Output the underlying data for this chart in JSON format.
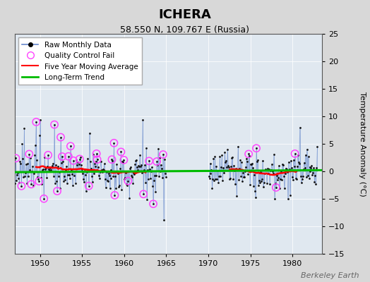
{
  "title": "ICHERA",
  "subtitle": "58.550 N, 109.767 E (Russia)",
  "ylabel": "Temperature Anomaly (°C)",
  "watermark": "Berkeley Earth",
  "xlim": [
    1947.0,
    1983.5
  ],
  "ylim": [
    -15,
    25
  ],
  "yticks": [
    -15,
    -10,
    -5,
    0,
    5,
    10,
    15,
    20,
    25
  ],
  "xticks": [
    1950,
    1955,
    1960,
    1965,
    1970,
    1975,
    1980
  ],
  "bg_color": "#d8d8d8",
  "plot_bg_color": "#e0e8f0",
  "raw_line_color": "#6688cc",
  "raw_dot_color": "#111111",
  "qc_fail_color": "#ff44ff",
  "moving_avg_color": "#ff0000",
  "trend_color": "#00bb00",
  "seed": 12345
}
